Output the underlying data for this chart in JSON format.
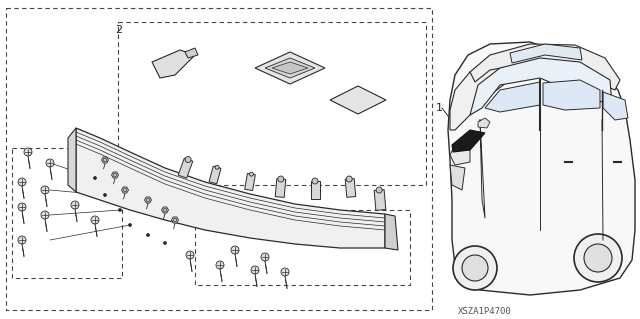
{
  "bg_color": "#ffffff",
  "line_color": "#2a2a2a",
  "gray_fill": "#e8e8e8",
  "dark_fill": "#555555",
  "diagram_code": "XSZA1P4700",
  "label1": "1",
  "label2": "2",
  "fig_width": 6.4,
  "fig_height": 3.19,
  "dpi": 100
}
